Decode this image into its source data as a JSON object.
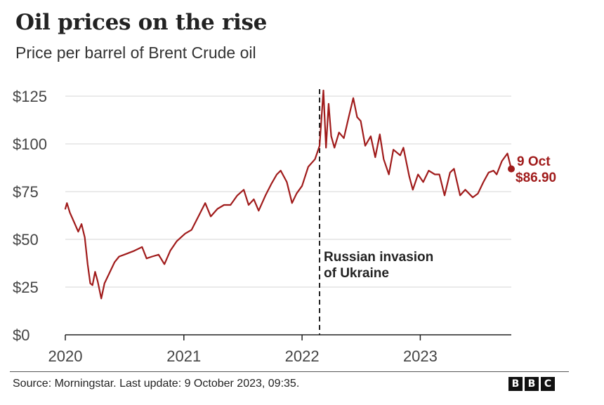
{
  "header": {
    "title": "Oil prices on the rise",
    "subtitle": "Price per barrel of Brent Crude oil"
  },
  "footer": {
    "source": "Source: Morningstar. Last update:  9 October 2023, 09:35.",
    "logo_letters": [
      "B",
      "B",
      "C"
    ]
  },
  "colors": {
    "line": "#a01b1b",
    "grid": "#d6d6d6",
    "axis": "#222222",
    "annotation": "#222222"
  },
  "chart_data": {
    "type": "line",
    "title": "Oil prices on the rise",
    "subtitle": "Price per barrel of Brent Crude oil",
    "xlabel": "",
    "ylabel": "",
    "x_ticks": [
      "2020",
      "2021",
      "2022",
      "2023"
    ],
    "y_ticks": [
      "$0",
      "$25",
      "$50",
      "$75",
      "$100",
      "$125"
    ],
    "ylim": [
      0,
      125
    ],
    "xlim": [
      "2020-01-01",
      "2023-10-09"
    ],
    "grid": "horizontal",
    "series": [
      {
        "color": "#a01b1b",
        "points": [
          [
            "2020-01-01",
            66
          ],
          [
            "2020-01-06",
            69
          ],
          [
            "2020-01-15",
            64
          ],
          [
            "2020-01-28",
            59
          ],
          [
            "2020-02-10",
            54
          ],
          [
            "2020-02-20",
            58
          ],
          [
            "2020-03-01",
            51
          ],
          [
            "2020-03-10",
            37
          ],
          [
            "2020-03-18",
            27
          ],
          [
            "2020-03-25",
            26
          ],
          [
            "2020-04-02",
            33
          ],
          [
            "2020-04-10",
            28
          ],
          [
            "2020-04-21",
            19
          ],
          [
            "2020-05-01",
            27
          ],
          [
            "2020-05-15",
            32
          ],
          [
            "2020-06-01",
            38
          ],
          [
            "2020-06-15",
            41
          ],
          [
            "2020-07-01",
            42
          ],
          [
            "2020-08-01",
            44
          ],
          [
            "2020-08-25",
            46
          ],
          [
            "2020-09-08",
            40
          ],
          [
            "2020-09-25",
            41
          ],
          [
            "2020-10-15",
            42
          ],
          [
            "2020-11-02",
            37
          ],
          [
            "2020-11-20",
            44
          ],
          [
            "2020-12-10",
            49
          ],
          [
            "2021-01-05",
            53
          ],
          [
            "2021-01-25",
            55
          ],
          [
            "2021-02-15",
            62
          ],
          [
            "2021-03-08",
            69
          ],
          [
            "2021-03-25",
            62
          ],
          [
            "2021-04-15",
            66
          ],
          [
            "2021-05-05",
            68
          ],
          [
            "2021-05-25",
            68
          ],
          [
            "2021-06-15",
            73
          ],
          [
            "2021-07-05",
            76
          ],
          [
            "2021-07-20",
            68
          ],
          [
            "2021-08-05",
            71
          ],
          [
            "2021-08-20",
            65
          ],
          [
            "2021-09-10",
            73
          ],
          [
            "2021-09-28",
            79
          ],
          [
            "2021-10-15",
            84
          ],
          [
            "2021-10-27",
            86
          ],
          [
            "2021-11-15",
            80
          ],
          [
            "2021-12-01",
            69
          ],
          [
            "2021-12-15",
            74
          ],
          [
            "2022-01-01",
            78
          ],
          [
            "2022-01-20",
            88
          ],
          [
            "2022-02-10",
            92
          ],
          [
            "2022-02-24",
            99
          ],
          [
            "2022-03-08",
            128
          ],
          [
            "2022-03-16",
            98
          ],
          [
            "2022-03-24",
            121
          ],
          [
            "2022-04-01",
            104
          ],
          [
            "2022-04-11",
            98
          ],
          [
            "2022-04-25",
            106
          ],
          [
            "2022-05-10",
            103
          ],
          [
            "2022-05-25",
            114
          ],
          [
            "2022-06-08",
            124
          ],
          [
            "2022-06-20",
            114
          ],
          [
            "2022-07-01",
            112
          ],
          [
            "2022-07-15",
            99
          ],
          [
            "2022-08-01",
            104
          ],
          [
            "2022-08-15",
            93
          ],
          [
            "2022-08-29",
            105
          ],
          [
            "2022-09-10",
            92
          ],
          [
            "2022-09-26",
            84
          ],
          [
            "2022-10-10",
            97
          ],
          [
            "2022-10-31",
            94
          ],
          [
            "2022-11-10",
            98
          ],
          [
            "2022-11-28",
            83
          ],
          [
            "2022-12-09",
            76
          ],
          [
            "2022-12-25",
            84
          ],
          [
            "2023-01-10",
            80
          ],
          [
            "2023-01-27",
            86
          ],
          [
            "2023-02-15",
            84
          ],
          [
            "2023-03-01",
            84
          ],
          [
            "2023-03-17",
            73
          ],
          [
            "2023-04-03",
            85
          ],
          [
            "2023-04-15",
            87
          ],
          [
            "2023-05-04",
            73
          ],
          [
            "2023-05-20",
            76
          ],
          [
            "2023-06-12",
            72
          ],
          [
            "2023-06-28",
            74
          ],
          [
            "2023-07-15",
            80
          ],
          [
            "2023-07-31",
            85
          ],
          [
            "2023-08-15",
            86
          ],
          [
            "2023-08-25",
            84
          ],
          [
            "2023-09-10",
            91
          ],
          [
            "2023-09-27",
            95
          ],
          [
            "2023-10-03",
            91
          ],
          [
            "2023-10-09",
            86.9
          ]
        ]
      }
    ],
    "annotations": [
      {
        "type": "vline",
        "x": "2022-02-24",
        "label_lines": [
          "Russian invasion",
          "of Ukraine"
        ]
      }
    ],
    "end_label": {
      "date": "9 Oct",
      "value": "$86.90"
    }
  }
}
